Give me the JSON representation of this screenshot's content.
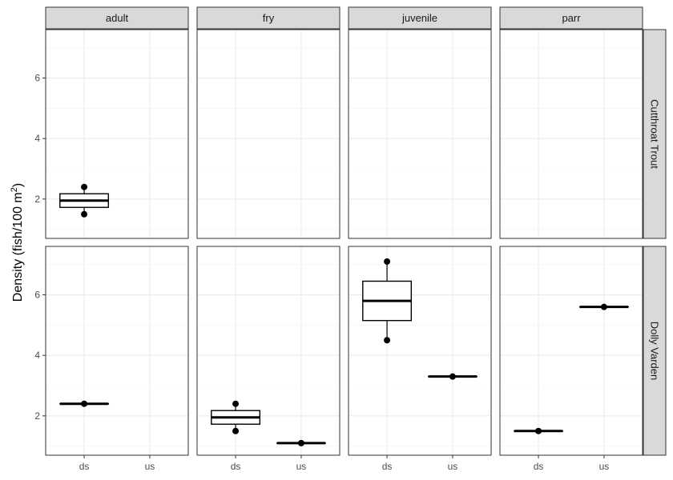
{
  "chart_data": {
    "type": "boxplot",
    "ylabel_main": "Density (fish/100 m",
    "ylabel_sup": "2",
    "ylabel_close": ")",
    "col_facets": [
      "adult",
      "fry",
      "juvenile",
      "parr"
    ],
    "row_facets": [
      "Cutthroat Trout",
      "Dolly Varden"
    ],
    "x_categories": [
      "ds",
      "us"
    ],
    "y_ticks": [
      2,
      4,
      6
    ],
    "ylim": [
      0.7,
      7.6
    ],
    "grid": true,
    "panels": [
      {
        "row": "Cutthroat Trout",
        "col": "adult",
        "boxes": [
          {
            "x": "ds",
            "lower": 1.5,
            "q1": 1.725,
            "median": 1.95,
            "q3": 2.175,
            "upper": 2.4
          }
        ]
      },
      {
        "row": "Cutthroat Trout",
        "col": "fry",
        "boxes": []
      },
      {
        "row": "Cutthroat Trout",
        "col": "juvenile",
        "boxes": []
      },
      {
        "row": "Cutthroat Trout",
        "col": "parr",
        "boxes": []
      },
      {
        "row": "Dolly Varden",
        "col": "adult",
        "boxes": [
          {
            "x": "ds",
            "lower": 2.4,
            "q1": 2.4,
            "median": 2.4,
            "q3": 2.4,
            "upper": 2.4
          }
        ]
      },
      {
        "row": "Dolly Varden",
        "col": "fry",
        "boxes": [
          {
            "x": "ds",
            "lower": 1.5,
            "q1": 1.725,
            "median": 1.95,
            "q3": 2.175,
            "upper": 2.4
          },
          {
            "x": "us",
            "lower": 1.1,
            "q1": 1.1,
            "median": 1.1,
            "q3": 1.1,
            "upper": 1.1
          }
        ]
      },
      {
        "row": "Dolly Varden",
        "col": "juvenile",
        "boxes": [
          {
            "x": "ds",
            "lower": 4.5,
            "q1": 5.15,
            "median": 5.8,
            "q3": 6.45,
            "upper": 7.1
          },
          {
            "x": "us",
            "lower": 3.3,
            "q1": 3.3,
            "median": 3.3,
            "q3": 3.3,
            "upper": 3.3
          }
        ]
      },
      {
        "row": "Dolly Varden",
        "col": "parr",
        "boxes": [
          {
            "x": "ds",
            "lower": 1.5,
            "q1": 1.5,
            "median": 1.5,
            "q3": 1.5,
            "upper": 1.5
          },
          {
            "x": "us",
            "lower": 5.6,
            "q1": 5.6,
            "median": 5.6,
            "q3": 5.6,
            "upper": 5.6
          }
        ]
      }
    ]
  }
}
